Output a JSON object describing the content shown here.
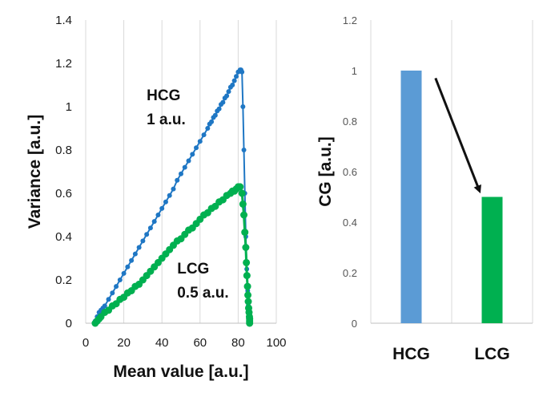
{
  "chart_data": [
    {
      "type": "line",
      "xlabel": "Mean value [a.u.]",
      "ylabel": "Variance [a.u.]",
      "xlim": [
        0,
        100
      ],
      "ylim": [
        0,
        1.4
      ],
      "xticks": [
        "0",
        "20",
        "40",
        "60",
        "80",
        "100"
      ],
      "yticks": [
        "0",
        "0.2",
        "0.4",
        "0.6",
        "0.8",
        "1",
        "1.2",
        "1.4"
      ],
      "grid": "vertical",
      "series": [
        {
          "color": "#1f77c4",
          "marker": "small-dot",
          "x": [
            5,
            6,
            7,
            8,
            9,
            10,
            12,
            14,
            16,
            18,
            20,
            22,
            24,
            26,
            28,
            30,
            32,
            34,
            36,
            38,
            40,
            42,
            44,
            46,
            48,
            50,
            52,
            54,
            56,
            58,
            60,
            62,
            64,
            65,
            66,
            67,
            68,
            69,
            70,
            71,
            72,
            73,
            74,
            75,
            76,
            77,
            78,
            79,
            80,
            81,
            81.5,
            82,
            82.5,
            83,
            83.5,
            84,
            84.5,
            85,
            85.3,
            85.6,
            85.8,
            86
          ],
          "y": [
            0.01,
            0.03,
            0.05,
            0.06,
            0.07,
            0.08,
            0.11,
            0.14,
            0.17,
            0.2,
            0.23,
            0.26,
            0.29,
            0.32,
            0.35,
            0.38,
            0.41,
            0.44,
            0.47,
            0.5,
            0.53,
            0.56,
            0.59,
            0.62,
            0.66,
            0.69,
            0.72,
            0.75,
            0.78,
            0.81,
            0.84,
            0.87,
            0.9,
            0.92,
            0.93,
            0.95,
            0.96,
            0.98,
            0.99,
            1.01,
            1.02,
            1.04,
            1.05,
            1.07,
            1.09,
            1.1,
            1.12,
            1.14,
            1.16,
            1.17,
            1.17,
            1.16,
            1.0,
            0.8,
            0.6,
            0.4,
            0.25,
            0.15,
            0.08,
            0.04,
            0.02,
            0.01
          ]
        },
        {
          "color": "#00b050",
          "marker": "large-dot",
          "x": [
            5,
            6,
            7,
            8,
            10,
            12,
            14,
            16,
            18,
            20,
            22,
            24,
            26,
            28,
            30,
            32,
            34,
            36,
            38,
            40,
            42,
            44,
            46,
            48,
            50,
            52,
            54,
            56,
            58,
            60,
            62,
            64,
            66,
            68,
            70,
            72,
            74,
            76,
            77,
            78,
            79,
            80,
            81,
            82,
            82.5,
            83,
            83.5,
            84,
            84.3,
            84.6,
            84.9,
            85.1,
            85.3,
            85.5,
            85.7,
            85.9,
            86,
            86,
            86
          ],
          "y": [
            0.0,
            0.01,
            0.02,
            0.03,
            0.05,
            0.06,
            0.08,
            0.09,
            0.11,
            0.12,
            0.14,
            0.15,
            0.17,
            0.18,
            0.2,
            0.22,
            0.24,
            0.26,
            0.28,
            0.3,
            0.32,
            0.34,
            0.36,
            0.38,
            0.39,
            0.41,
            0.43,
            0.44,
            0.46,
            0.48,
            0.5,
            0.51,
            0.53,
            0.54,
            0.56,
            0.57,
            0.59,
            0.6,
            0.61,
            0.61,
            0.62,
            0.63,
            0.63,
            0.6,
            0.55,
            0.5,
            0.42,
            0.35,
            0.28,
            0.22,
            0.17,
            0.13,
            0.1,
            0.07,
            0.05,
            0.03,
            0.02,
            0.01,
            0.0
          ]
        }
      ],
      "annotations": [
        {
          "lines": [
            "HCG",
            "1 a.u."
          ],
          "x": 32,
          "y": 1.03
        },
        {
          "lines": [
            "LCG",
            "0.5 a.u."
          ],
          "x": 48,
          "y": 0.23
        }
      ]
    },
    {
      "type": "bar",
      "categories": [
        "HCG",
        "LCG"
      ],
      "values": [
        1.0,
        0.5
      ],
      "colors": [
        "#5b9bd5",
        "#00b050"
      ],
      "ylabel": "CG [a.u.]",
      "ylim": [
        0,
        1.2
      ],
      "yticks": [
        "0",
        "0.2",
        "0.4",
        "0.6",
        "0.8",
        "1",
        "1.2"
      ],
      "grid": "vertical",
      "arrow": {
        "from": [
          0.3,
          0.97
        ],
        "to": [
          0.95,
          0.51
        ]
      }
    }
  ]
}
